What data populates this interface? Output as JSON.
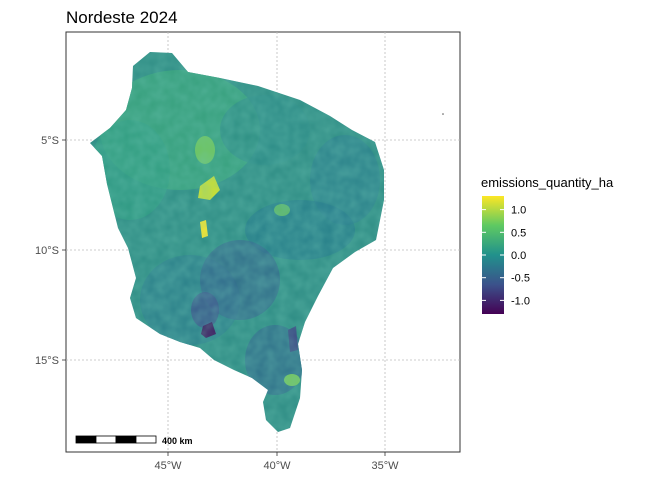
{
  "title": "Nordeste 2024",
  "axes": {
    "x_ticks": [
      "45°W",
      "40°W",
      "35°W"
    ],
    "y_ticks": [
      "5°S",
      "10°S",
      "15°S"
    ]
  },
  "legend": {
    "title": "emissions_quantity_ha",
    "labels": [
      "1.0",
      "0.5",
      "0.0",
      "-0.5",
      "-1.0"
    ],
    "colors": [
      "#fde725",
      "#5ec962",
      "#21918c",
      "#3b528b",
      "#440154"
    ],
    "range": [
      -1.3,
      1.3
    ]
  },
  "scalebar": {
    "label": "400 km"
  },
  "colors": {
    "region_base": "#2e8c84",
    "grid": "#bdbdbd",
    "panel_border": "#333333"
  }
}
